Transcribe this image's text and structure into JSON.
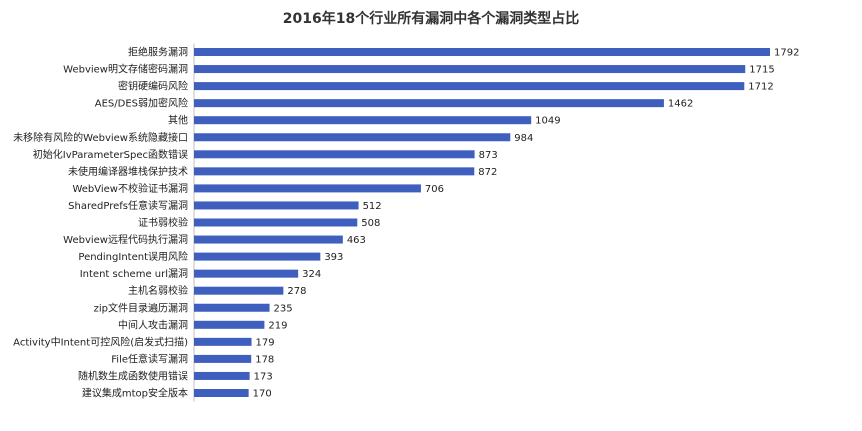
{
  "chart_data": {
    "type": "bar",
    "orientation": "horizontal",
    "title": "2016年18个行业所有漏洞中各个漏洞类型占比",
    "xlabel": "",
    "ylabel": "",
    "xlim": [
      0,
      1792
    ],
    "grid": false,
    "legend": "none",
    "bar_color": "#3f5fbf",
    "categories": [
      "拒绝服务漏洞",
      "Webview明文存储密码漏洞",
      "密钥硬编码风险",
      "AES/DES弱加密风险",
      "其他",
      "未移除有风险的Webview系统隐藏接口",
      "初始化IvParameterSpec函数错误",
      "未使用编译器堆栈保护技术",
      "WebView不校验证书漏洞",
      "SharedPrefs任意读写漏洞",
      "证书弱校验",
      "Webview远程代码执行漏洞",
      "PendingIntent误用风险",
      "Intent scheme url漏洞",
      "主机名弱校验",
      "zip文件目录遍历漏洞",
      "中间人攻击漏洞",
      "Activity中Intent可控风险(启发式扫描)",
      "File任意读写漏洞",
      "随机数生成函数使用错误",
      "建议集成mtop安全版本"
    ],
    "values": [
      1792,
      1715,
      1712,
      1462,
      1049,
      984,
      873,
      872,
      706,
      512,
      508,
      463,
      393,
      324,
      278,
      235,
      219,
      179,
      178,
      173,
      170
    ]
  }
}
